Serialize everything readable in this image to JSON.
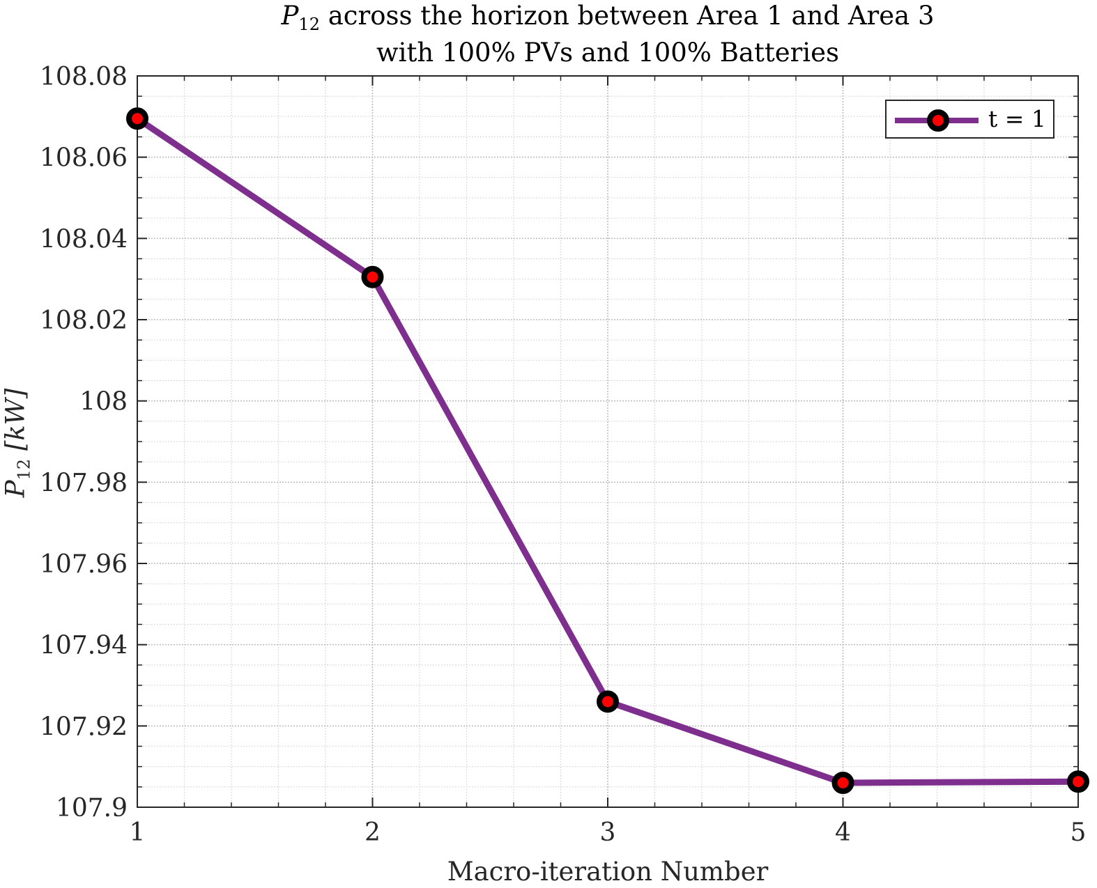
{
  "chart_data": {
    "type": "line",
    "title_line1_symbol": "P",
    "title_line1_subscript": "12",
    "title_line1_rest": " across the horizon between Area 1 and Area 3",
    "title_line2": "with 100% PVs and 100% Batteries",
    "xlabel": "Macro-iteration Number",
    "ylabel_symbol": "P",
    "ylabel_subscript": "12",
    "ylabel_unit": " [kW]",
    "xlim": [
      1,
      5
    ],
    "ylim": [
      107.9,
      108.08
    ],
    "xticks": [
      1,
      2,
      3,
      4,
      5
    ],
    "yticks": [
      107.9,
      107.92,
      107.94,
      107.96,
      107.98,
      108,
      108.02,
      108.04,
      108.06,
      108.08
    ],
    "ytick_labels": [
      "107.9",
      "107.92",
      "107.94",
      "107.96",
      "107.98",
      "108",
      "108.02",
      "108.04",
      "108.06",
      "108.08"
    ],
    "grid": true,
    "minor_grid": true,
    "legend_position": "top-right",
    "series": [
      {
        "name": "t = 1",
        "x": [
          1,
          2,
          3,
          4,
          5
        ],
        "y": [
          108.0695,
          108.0305,
          107.926,
          107.906,
          107.9063
        ],
        "line_color": "#7E2F8E",
        "marker_edge_color": "#000000",
        "marker_face_color": "#FF0000"
      }
    ]
  }
}
